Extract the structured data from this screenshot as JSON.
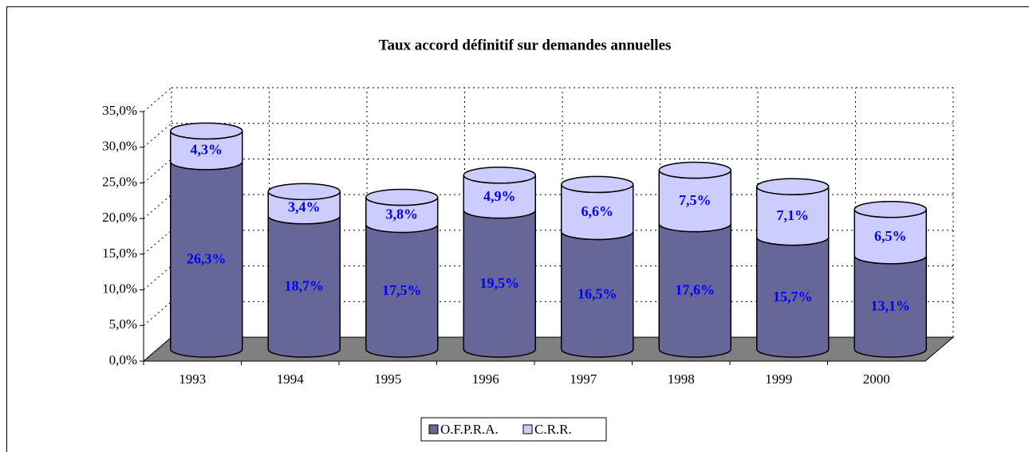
{
  "chart_data": {
    "type": "bar3d-stacked-cylinder",
    "title": "Taux accord définitif sur demandes annuelles",
    "categories": [
      "1993",
      "1994",
      "1995",
      "1996",
      "1997",
      "1998",
      "1999",
      "2000"
    ],
    "series": [
      {
        "name": "O.F.P.R.A.",
        "color": "#666699",
        "values": [
          26.3,
          18.7,
          17.5,
          19.5,
          16.5,
          17.6,
          15.7,
          13.1
        ],
        "value_labels": [
          "26,3%",
          "18,7%",
          "17,5%",
          "19,5%",
          "16,5%",
          "17,6%",
          "15,7%",
          "13,1%"
        ]
      },
      {
        "name": "C.R.R.",
        "color": "#ccccff",
        "values": [
          4.3,
          3.4,
          3.8,
          4.9,
          6.6,
          7.5,
          7.1,
          6.5
        ],
        "value_labels": [
          "4,3%",
          "3,4%",
          "3,8%",
          "4,9%",
          "6,6%",
          "7,5%",
          "7,1%",
          "6,5%"
        ]
      }
    ],
    "ylim": [
      0,
      35
    ],
    "yticks": [
      {
        "value": 0,
        "label": "0,0%"
      },
      {
        "value": 5,
        "label": "5,0%"
      },
      {
        "value": 10,
        "label": "10,0%"
      },
      {
        "value": 15,
        "label": "15,0%"
      },
      {
        "value": 20,
        "label": "20,0%"
      },
      {
        "value": 25,
        "label": "25,0%"
      },
      {
        "value": 30,
        "label": "30,0%"
      },
      {
        "value": 35,
        "label": "35,0%"
      }
    ],
    "grid": true,
    "legend": "bottom",
    "label_color": "#0000ff",
    "floor_color": "#808080"
  }
}
